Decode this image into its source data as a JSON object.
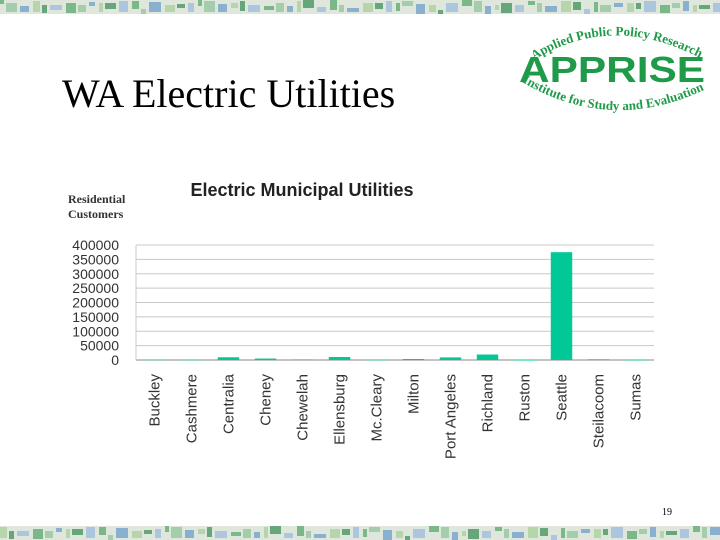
{
  "slide": {
    "title": "WA Electric Utilities",
    "page_number": "19"
  },
  "logo": {
    "arc_top": "Applied Public Policy Research",
    "name": "APPRISE",
    "arc_bottom": "Institute for Study and Evaluation",
    "color": "#1f9a49"
  },
  "chart_data": {
    "type": "bar",
    "title": "Electric Municipal Utilities",
    "ylabel_lines": [
      "Residential",
      "Customers"
    ],
    "xlabel": "",
    "categories": [
      "Buckley",
      "Cashmere",
      "Centralia",
      "Cheney",
      "Chewelah",
      "Ellensburg",
      "Mc.Cleary",
      "Milton",
      "Port Angeles",
      "Richland",
      "Ruston",
      "Seattle",
      "Steilacoom",
      "Sumas"
    ],
    "values": [
      1500,
      1200,
      9500,
      5000,
      2000,
      10500,
      1000,
      3500,
      9000,
      19000,
      300,
      375000,
      2500,
      600
    ],
    "ylim": [
      0,
      400000
    ],
    "yticks": [
      "0",
      "50000",
      "100000",
      "150000",
      "200000",
      "250000",
      "300000",
      "350000",
      "400000"
    ],
    "grid": true,
    "bar_color": "#00c896"
  }
}
